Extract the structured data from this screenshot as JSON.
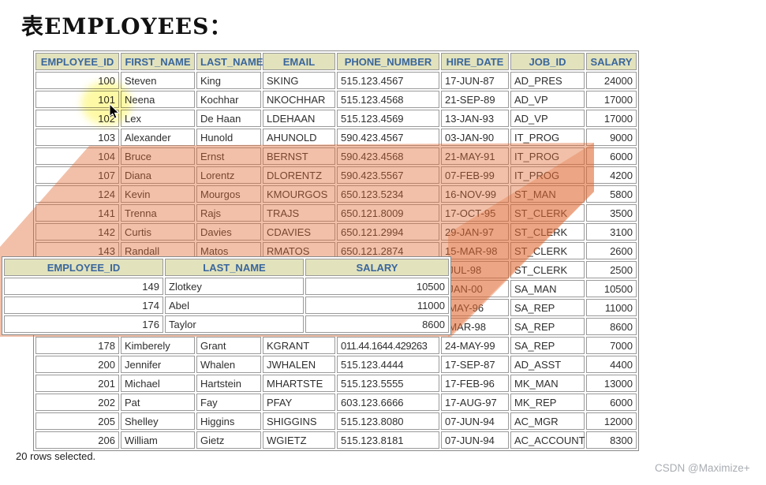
{
  "page": {
    "title": "表EMPLOYEES：",
    "footer": "20 rows selected.",
    "watermark": "CSDN @Maximize+"
  },
  "colors": {
    "header_bg": "#e2e2bd",
    "header_text": "#39669c",
    "cell_border": "#9a9a9a",
    "overlay_beam": "#e06a33",
    "highlight": "#fef9a0"
  },
  "main_table": {
    "columns": [
      "EMPLOYEE_ID",
      "FIRST_NAME",
      "LAST_NAME",
      "EMAIL",
      "PHONE_NUMBER",
      "HIRE_DATE",
      "JOB_ID",
      "SALARY"
    ],
    "rows": [
      [
        "100",
        "Steven",
        "King",
        "SKING",
        "515.123.4567",
        "17-JUN-87",
        "AD_PRES",
        "24000"
      ],
      [
        "101",
        "Neena",
        "Kochhar",
        "NKOCHHAR",
        "515.123.4568",
        "21-SEP-89",
        "AD_VP",
        "17000"
      ],
      [
        "102",
        "Lex",
        "De Haan",
        "LDEHAAN",
        "515.123.4569",
        "13-JAN-93",
        "AD_VP",
        "17000"
      ],
      [
        "103",
        "Alexander",
        "Hunold",
        "AHUNOLD",
        "590.423.4567",
        "03-JAN-90",
        "IT_PROG",
        "9000"
      ],
      [
        "104",
        "Bruce",
        "Ernst",
        "BERNST",
        "590.423.4568",
        "21-MAY-91",
        "IT_PROG",
        "6000"
      ],
      [
        "107",
        "Diana",
        "Lorentz",
        "DLORENTZ",
        "590.423.5567",
        "07-FEB-99",
        "IT_PROG",
        "4200"
      ],
      [
        "124",
        "Kevin",
        "Mourgos",
        "KMOURGOS",
        "650.123.5234",
        "16-NOV-99",
        "ST_MAN",
        "5800"
      ],
      [
        "141",
        "Trenna",
        "Rajs",
        "TRAJS",
        "650.121.8009",
        "17-OCT-95",
        "ST_CLERK",
        "3500"
      ],
      [
        "142",
        "Curtis",
        "Davies",
        "CDAVIES",
        "650.121.2994",
        "29-JAN-97",
        "ST_CLERK",
        "3100"
      ],
      [
        "143",
        "Randall",
        "Matos",
        "RMATOS",
        "650.121.2874",
        "15-MAR-98",
        "ST_CLERK",
        "2600"
      ],
      [
        "",
        "",
        "",
        "",
        "",
        "-JUL-98",
        "ST_CLERK",
        "2500"
      ],
      [
        "",
        "",
        "",
        "",
        "",
        "-JAN-00",
        "SA_MAN",
        "10500"
      ],
      [
        "",
        "",
        "",
        "",
        "",
        "-MAY-96",
        "SA_REP",
        "11000"
      ],
      [
        "",
        "",
        "",
        "",
        "",
        "-MAR-98",
        "SA_REP",
        "8600"
      ],
      [
        "178",
        "Kimberely",
        "Grant",
        "KGRANT",
        "011.44.1644.429263",
        "24-MAY-99",
        "SA_REP",
        "7000"
      ],
      [
        "200",
        "Jennifer",
        "Whalen",
        "JWHALEN",
        "515.123.4444",
        "17-SEP-87",
        "AD_ASST",
        "4400"
      ],
      [
        "201",
        "Michael",
        "Hartstein",
        "MHARTSTE",
        "515.123.5555",
        "17-FEB-96",
        "MK_MAN",
        "13000"
      ],
      [
        "202",
        "Pat",
        "Fay",
        "PFAY",
        "603.123.6666",
        "17-AUG-97",
        "MK_REP",
        "6000"
      ],
      [
        "205",
        "Shelley",
        "Higgins",
        "SHIGGINS",
        "515.123.8080",
        "07-JUN-94",
        "AC_MGR",
        "12000"
      ],
      [
        "206",
        "William",
        "Gietz",
        "WGIETZ",
        "515.123.8181",
        "07-JUN-94",
        "AC_ACCOUNT",
        "8300"
      ]
    ]
  },
  "result_table": {
    "columns": [
      "EMPLOYEE_ID",
      "LAST_NAME",
      "SALARY"
    ],
    "rows": [
      [
        "149",
        "Zlotkey",
        "10500"
      ],
      [
        "174",
        "Abel",
        "11000"
      ],
      [
        "176",
        "Taylor",
        "8600"
      ]
    ]
  }
}
